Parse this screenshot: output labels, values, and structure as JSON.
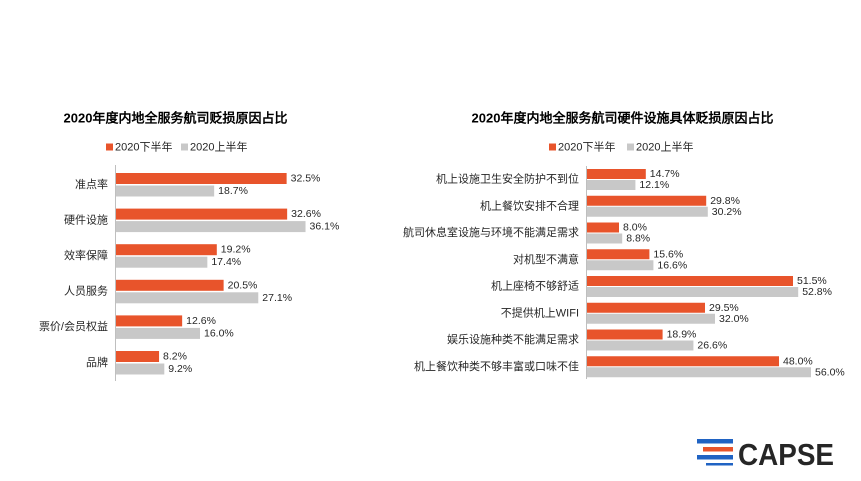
{
  "colors": {
    "second_half_2020": "#E8542B",
    "first_half_2020": "#C8C8C8",
    "axis": "#BFBFBF",
    "logo_blue": "#2063C3",
    "logo_orange": "#E8542B"
  },
  "logo": {
    "text": "CAPSE",
    "icon": "stripes-logo-icon"
  },
  "chart_data": [
    {
      "type": "bar",
      "orientation": "horizontal",
      "title": "2020年度内地全服务航司贬损原因占比",
      "categories": [
        "准点率",
        "硬件设施",
        "效率保障",
        "人员服务",
        "票价/会员权益",
        "品牌"
      ],
      "series": [
        {
          "name": "2020下半年",
          "color": "#E8542B",
          "values": [
            32.5,
            32.6,
            19.2,
            20.5,
            12.6,
            8.2
          ],
          "labels": [
            "32.5%",
            "32.6%",
            "19.2%",
            "20.5%",
            "12.6%",
            "8.2%"
          ]
        },
        {
          "name": "2020上半年",
          "color": "#C8C8C8",
          "values": [
            18.7,
            36.1,
            17.4,
            27.1,
            16.0,
            9.2
          ],
          "labels": [
            "18.7%",
            "36.1%",
            "17.4%",
            "27.1%",
            "16.0%",
            "9.2%"
          ]
        }
      ],
      "xlim": [
        0,
        40
      ],
      "legend": "top",
      "grid": false
    },
    {
      "type": "bar",
      "orientation": "horizontal",
      "title": "2020年度内地全服务航司硬件设施具体贬损原因占比",
      "categories": [
        "机上设施卫生安全防护不到位",
        "机上餐饮安排不合理",
        "航司休息室设施与环境不能满足需求",
        "对机型不满意",
        "机上座椅不够舒适",
        "不提供机上WIFI",
        "娱乐设施种类不能满足需求",
        "机上餐饮种类不够丰富或口味不佳"
      ],
      "series": [
        {
          "name": "2020下半年",
          "color": "#E8542B",
          "values": [
            14.7,
            29.8,
            8.0,
            15.6,
            51.5,
            29.5,
            18.9,
            48.0
          ],
          "labels": [
            "14.7%",
            "29.8%",
            "8.0%",
            "15.6%",
            "51.5%",
            "29.5%",
            "18.9%",
            "48.0%"
          ]
        },
        {
          "name": "2020上半年",
          "color": "#C8C8C8",
          "values": [
            12.1,
            30.2,
            8.8,
            16.6,
            52.8,
            32.0,
            26.6,
            56.0
          ],
          "labels": [
            "12.1%",
            "30.2%",
            "8.8%",
            "16.6%",
            "52.8%",
            "32.0%",
            "26.6%",
            "56.0%"
          ]
        }
      ],
      "xlim": [
        0,
        60
      ],
      "legend": "top",
      "grid": false
    }
  ]
}
